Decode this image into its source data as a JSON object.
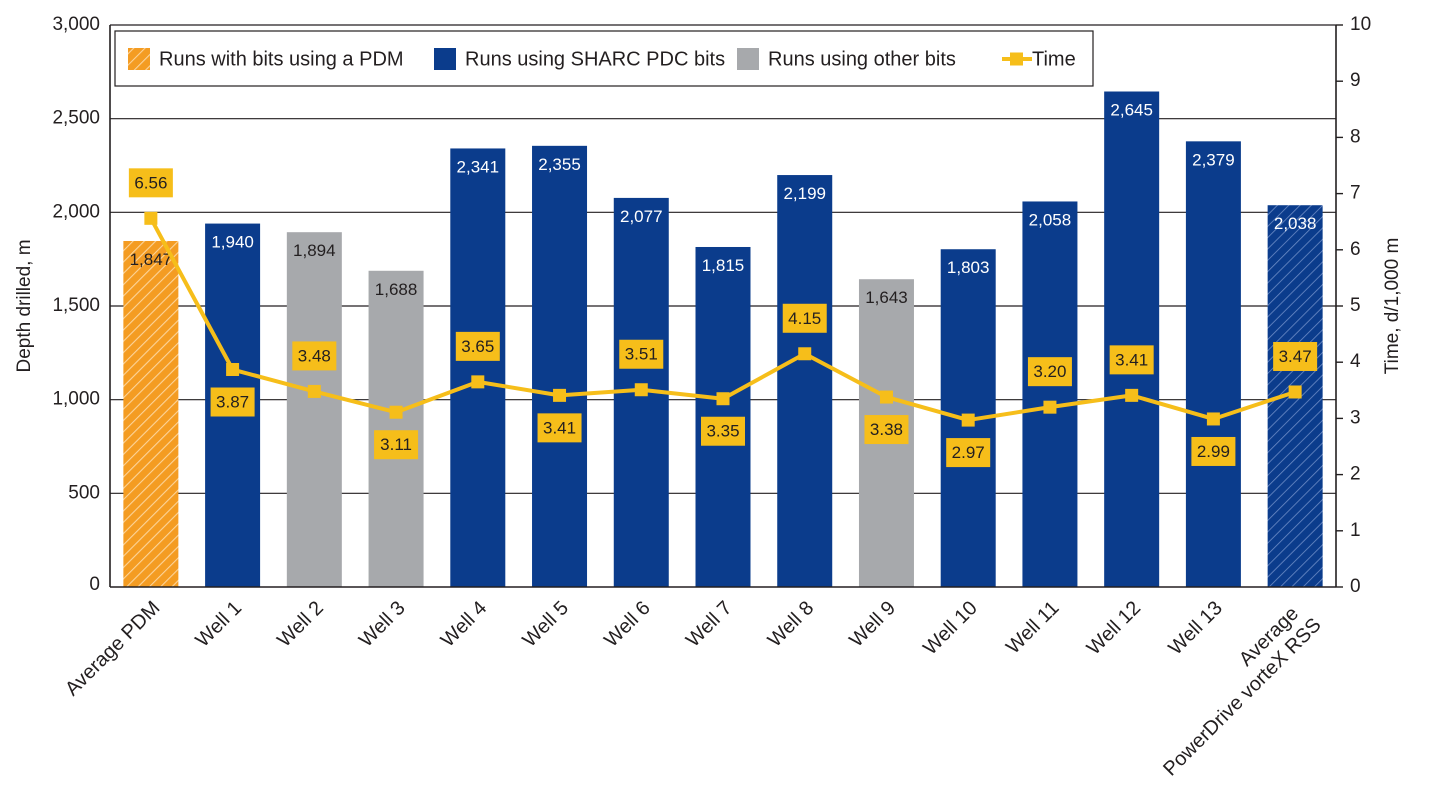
{
  "chart_data": {
    "type": "bar",
    "categories": [
      "Average PDM",
      "Well 1",
      "Well 2",
      "Well 3",
      "Well 4",
      "Well 5",
      "Well 6",
      "Well 7",
      "Well 8",
      "Well 9",
      "Well 10",
      "Well 11",
      "Well 12",
      "Well 13",
      "Average PowerDrive vorteX RSS"
    ],
    "category_lines": [
      [
        "Average PDM"
      ],
      [
        "Well 1"
      ],
      [
        "Well 2"
      ],
      [
        "Well 3"
      ],
      [
        "Well 4"
      ],
      [
        "Well 5"
      ],
      [
        "Well 6"
      ],
      [
        "Well 7"
      ],
      [
        "Well 8"
      ],
      [
        "Well 9"
      ],
      [
        "Well 10"
      ],
      [
        "Well 11"
      ],
      [
        "Well 12"
      ],
      [
        "Well 13"
      ],
      [
        "Average",
        "PowerDrive vorteX RSS"
      ]
    ],
    "bar_series": {
      "name": "Depth drilled, m",
      "values": [
        1847,
        1940,
        1894,
        1688,
        2341,
        2355,
        2077,
        1815,
        2199,
        1643,
        1803,
        2058,
        2645,
        2379,
        2038
      ],
      "value_labels": [
        "1,847",
        "1,940",
        "1,894",
        "1,688",
        "2,341",
        "2,355",
        "2,077",
        "1,815",
        "2,199",
        "1,643",
        "1,803",
        "2,058",
        "2,645",
        "2,379",
        "2,038"
      ],
      "groups": [
        "pdm",
        "sharc",
        "other",
        "other",
        "sharc",
        "sharc",
        "sharc",
        "sharc",
        "sharc",
        "other",
        "sharc",
        "sharc",
        "sharc",
        "sharc",
        "sharc-avg"
      ]
    },
    "line_series": {
      "name": "Time",
      "values": [
        6.56,
        3.87,
        3.48,
        3.11,
        3.65,
        3.41,
        3.51,
        3.35,
        4.15,
        3.38,
        2.97,
        3.2,
        3.41,
        2.99,
        3.47
      ],
      "value_labels": [
        "6.56",
        "3.87",
        "3.48",
        "3.11",
        "3.65",
        "3.41",
        "3.51",
        "3.35",
        "4.15",
        "3.38",
        "2.97",
        "3.20",
        "3.41",
        "2.99",
        "3.47"
      ],
      "label_position": [
        "above",
        "below",
        "above",
        "below",
        "above",
        "below",
        "above",
        "below",
        "above",
        "below",
        "below",
        "above",
        "above",
        "below",
        "above"
      ]
    },
    "legend": [
      {
        "key": "pdm",
        "label": "Runs with bits using a PDM"
      },
      {
        "key": "sharc",
        "label": "Runs using SHARC PDC bits"
      },
      {
        "key": "other",
        "label": "Runs using other bits"
      },
      {
        "key": "time",
        "label": "Time"
      }
    ],
    "legend_position": "top",
    "ylabel": "Depth drilled, m",
    "y2label": "Time, d/1,000 m",
    "ylim": [
      0,
      3000
    ],
    "y2lim": [
      0,
      10
    ],
    "yticks": [
      0,
      500,
      1000,
      1500,
      2000,
      2500,
      3000
    ],
    "ytick_labels": [
      "0",
      "500",
      "1,000",
      "1,500",
      "2,000",
      "2,500",
      "3,000"
    ],
    "y2ticks": [
      0,
      1,
      2,
      3,
      4,
      5,
      6,
      7,
      8,
      9,
      10
    ],
    "y2tick_labels": [
      "0",
      "1",
      "2",
      "3",
      "4",
      "5",
      "6",
      "7",
      "8",
      "9",
      "10"
    ],
    "grid": true,
    "colors": {
      "sharc": "#0b3c8c",
      "other": "#a7a9ac",
      "pdm": "#f49c22",
      "pdm_hatch": "#fcd49a",
      "sharc_avg_hatch": "#6d8dc7",
      "time": "#f6be1a",
      "axis": "#231f20",
      "grid": "#231f20"
    }
  }
}
